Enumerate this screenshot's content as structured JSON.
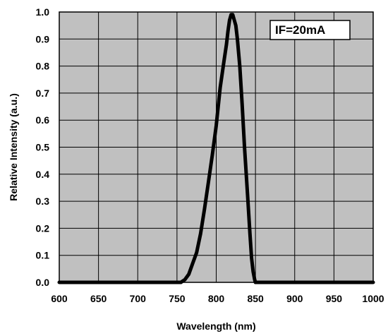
{
  "chart_data": {
    "type": "line",
    "xlabel": "Wavelength (nm)",
    "ylabel": "Relative Intensity (a.u.)",
    "xlim": [
      600,
      1000
    ],
    "ylim": [
      0,
      1.0
    ],
    "x_ticks": [
      "600",
      "650",
      "700",
      "750",
      "800",
      "850",
      "900",
      "950",
      "1000"
    ],
    "y_ticks": [
      "0.0",
      "0.1",
      "0.2",
      "0.3",
      "0.4",
      "0.5",
      "0.6",
      "0.7",
      "0.8",
      "0.9",
      "1.0"
    ],
    "annotation": "IF=20mA",
    "grid": true,
    "plot_background": "#c0c0c0",
    "line_color": "#000000",
    "series": [
      {
        "x": [
          600,
          755,
          760,
          765,
          770,
          775,
          780,
          785,
          790,
          795,
          800,
          805,
          810,
          813,
          815,
          817,
          819,
          821,
          823,
          825,
          827,
          830,
          833,
          836,
          840,
          843,
          845,
          847,
          849,
          850,
          860,
          1000
        ],
        "y": [
          0,
          0,
          0.01,
          0.03,
          0.07,
          0.11,
          0.18,
          0.27,
          0.37,
          0.47,
          0.58,
          0.72,
          0.82,
          0.88,
          0.93,
          0.97,
          0.99,
          0.99,
          0.97,
          0.95,
          0.9,
          0.8,
          0.66,
          0.5,
          0.32,
          0.18,
          0.09,
          0.04,
          0.01,
          0,
          0,
          0
        ]
      }
    ]
  }
}
